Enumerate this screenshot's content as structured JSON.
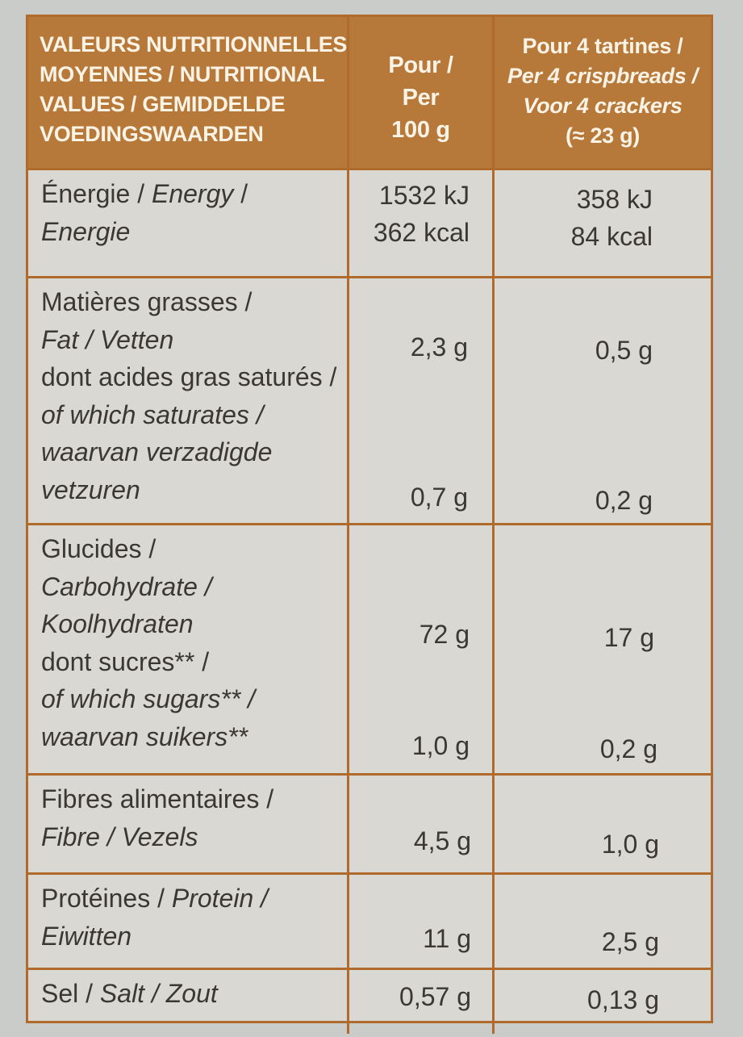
{
  "header": {
    "col1": [
      "VALEURS NUTRITIONNELLES",
      "MOYENNES / NUTRITIONAL",
      "VALUES / GEMIDDELDE",
      "VOEDINGSWAARDEN"
    ],
    "col2": [
      "Pour /",
      "Per",
      "100 g"
    ],
    "col3": [
      "Pour 4 tartines /",
      "Per 4 crispbreads /",
      "Voor 4 crackers",
      "(≈ 23 g)"
    ]
  },
  "rows": {
    "energy": {
      "label": [
        "Énergie / ",
        "Energy",
        " /",
        "Energie"
      ],
      "per100": [
        "1532 kJ",
        "362 kcal"
      ],
      "per4": [
        "358 kJ",
        "84 kcal"
      ]
    },
    "fat": {
      "label": [
        "Matières grasses /",
        "Fat / Vetten",
        "dont acides gras saturés /",
        "of which saturates /",
        "waarvan verzadigde",
        "vetzuren"
      ],
      "per100": [
        "2,3 g",
        "0,7 g"
      ],
      "per4": [
        "0,5 g",
        "0,2 g"
      ]
    },
    "carbs": {
      "label": [
        "Glucides /",
        "Carbohydrate /",
        "Koolhydraten",
        "dont sucres** /",
        "of which sugars** /",
        "waarvan suikers**"
      ],
      "per100": [
        "72 g",
        "1,0 g"
      ],
      "per4": [
        "17 g",
        "0,2 g"
      ]
    },
    "fibre": {
      "label": [
        "Fibres alimentaires /",
        "Fibre / Vezels"
      ],
      "per100": "4,5 g",
      "per4": "1,0 g"
    },
    "protein": {
      "label": [
        "Protéines / ",
        "Protein /",
        "Eiwitten"
      ],
      "per100": "11 g",
      "per4": "2,5 g"
    },
    "salt": {
      "label": [
        "Sel / ",
        "Salt / Zout"
      ],
      "per100": "0,57 g",
      "per4": "0,13 g"
    }
  },
  "colors": {
    "header_bg": "#b7793a",
    "border": "#b06a2c",
    "cell_bg": "#d9d8d2",
    "text": "#3a3734"
  }
}
